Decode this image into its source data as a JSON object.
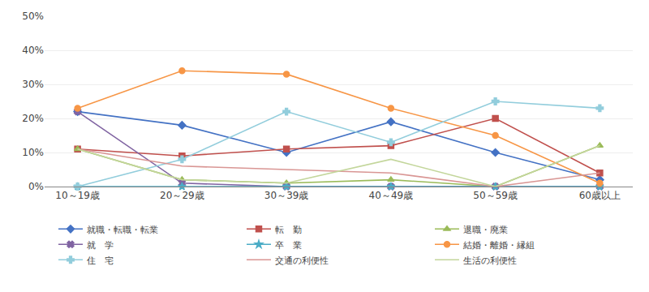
{
  "chart_data": {
    "type": "line",
    "categories": [
      "10～19歳",
      "20～29歳",
      "30～39歳",
      "40～49歳",
      "50～59歳",
      "60歳以上"
    ],
    "series": [
      {
        "name": "就職・転職・転業",
        "color": "#4472C4",
        "marker": "diamond",
        "values": [
          22,
          18,
          10,
          19,
          10,
          2
        ]
      },
      {
        "name": "転　勤",
        "color": "#C0504D",
        "marker": "square",
        "values": [
          11,
          9,
          11,
          12,
          20,
          4
        ]
      },
      {
        "name": "退職・廃業",
        "color": "#9BBB59",
        "marker": "triangle-up",
        "values": [
          11,
          2,
          1,
          2,
          0,
          12
        ]
      },
      {
        "name": "就　学",
        "color": "#8064A2",
        "marker": "x",
        "values": [
          22,
          1,
          0,
          0,
          0,
          0
        ]
      },
      {
        "name": "卒　業",
        "color": "#4BACC6",
        "marker": "star",
        "values": [
          0,
          0,
          0,
          0,
          0,
          0
        ]
      },
      {
        "name": "結婚・離婚・縁組",
        "color": "#F79646",
        "marker": "circle",
        "values": [
          23,
          34,
          33,
          23,
          15,
          1
        ]
      },
      {
        "name": "住　宅",
        "color": "#92CDDC",
        "marker": "cross",
        "values": [
          0,
          8,
          22,
          13,
          25,
          23
        ]
      },
      {
        "name": "交通の利便性",
        "color": "#D99694",
        "marker": "none",
        "values": [
          11,
          6,
          5,
          4,
          0,
          4
        ]
      },
      {
        "name": "生活の利便性",
        "color": "#C3D69B",
        "marker": "none",
        "values": [
          11,
          2,
          1,
          8,
          0,
          12
        ]
      }
    ],
    "ylim": [
      0,
      50
    ],
    "yticks": [
      {
        "value": 0,
        "label": "0%"
      },
      {
        "value": 10,
        "label": "10%"
      },
      {
        "value": 20,
        "label": "20%"
      },
      {
        "value": 30,
        "label": "30%"
      },
      {
        "value": 40,
        "label": "40%"
      },
      {
        "value": 50,
        "label": "50%"
      }
    ],
    "grid": true,
    "legend": "bottom",
    "line_style": "solid"
  }
}
